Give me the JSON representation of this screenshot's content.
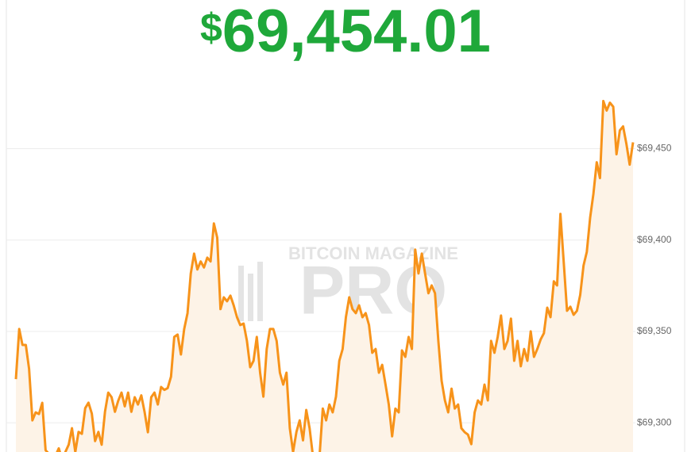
{
  "chart_data": {
    "type": "line",
    "title_symbol": "$",
    "title": "69,454.01",
    "watermark": [
      "BITCOIN MAGAZINE",
      "PRO"
    ],
    "color": "#f7931a",
    "fill": "#fdf3e7",
    "grid": true,
    "ylim": [
      69284,
      69488
    ],
    "yticks": [
      {
        "value": 69300,
        "label": "$69,300"
      },
      {
        "value": 69350,
        "label": "$69,350"
      },
      {
        "value": 69400,
        "label": "$69,400"
      },
      {
        "value": 69450,
        "label": "$69,450"
      }
    ],
    "values": [
      69323.9,
      69351.3,
      69342.6,
      69342.6,
      69329.6,
      69301.3,
      69305.7,
      69304.8,
      69310.9,
      69285,
      69283,
      69280,
      69282,
      69286,
      69280,
      69284,
      69288,
      69297,
      69284,
      69295,
      69294,
      69308,
      69311,
      69305,
      69290,
      69295,
      69288,
      69306.1,
      69316.5,
      69314,
      69306,
      69312,
      69316.5,
      69309,
      69316.5,
      69306,
      69314,
      69310,
      69315,
      69306,
      69294.8,
      69314,
      69316.5,
      69310,
      69319.6,
      69318,
      69319,
      69325.2,
      69347,
      69348.3,
      69337.4,
      69351.3,
      69360,
      69381.7,
      69392.6,
      69383.9,
      69388.3,
      69385,
      69390.4,
      69388.3,
      69409.1,
      69401.3,
      69362.2,
      69368.7,
      69366.5,
      69369.6,
      69364.3,
      69357.8,
      69353.5,
      69354.3,
      69344.8,
      69330.4,
      69333.9,
      69347,
      69327.4,
      69314.3,
      69340.4,
      69351.3,
      69351.3,
      69344.8,
      69327.4,
      69320.9,
      69327.4,
      69297,
      69284,
      69295,
      69301.3,
      69290.4,
      69307,
      69297,
      69281.7,
      69281.7,
      69281.7,
      69307.8,
      69301.3,
      69310,
      69305.7,
      69314.3,
      69333.9,
      69340.4,
      69357.8,
      69368.7,
      69362.2,
      69360,
      69364.3,
      69357.8,
      69360,
      69353.5,
      69338.3,
      69340.4,
      69327.4,
      69331.7,
      69320.9,
      69310,
      69292.6,
      69307.8,
      69305.7,
      69339.6,
      69336.1,
      69347,
      69340.4,
      69394.8,
      69381.7,
      69392.6,
      69381.7,
      69370.9,
      69375.2,
      69370.9,
      69344.8,
      69323,
      69312.2,
      69305.7,
      69318.7,
      69307.8,
      69310,
      69297,
      69294.8,
      69293.5,
      69288.3,
      69305.7,
      69312.2,
      69310,
      69320.9,
      69312.2,
      69344.8,
      69338.3,
      69347,
      69358.7,
      69340.4,
      69344.8,
      69357,
      69333.9,
      69344.8,
      69330.9,
      69340.4,
      69333.9,
      69350,
      69336.1,
      69340.4,
      69345.6,
      69349,
      69363,
      69357.8,
      69377.4,
      69375.2,
      69414.3,
      69388.3,
      69361.3,
      69363.5,
      69359.1,
      69361.3,
      69370,
      69386.1,
      69393.5,
      69412.2,
      69425.2,
      69442.6,
      69433.9,
      69476.1,
      69470.9,
      69475.2,
      69473,
      69447,
      69460,
      69462.2,
      69452.6,
      69441.3,
      69453.5
    ]
  }
}
